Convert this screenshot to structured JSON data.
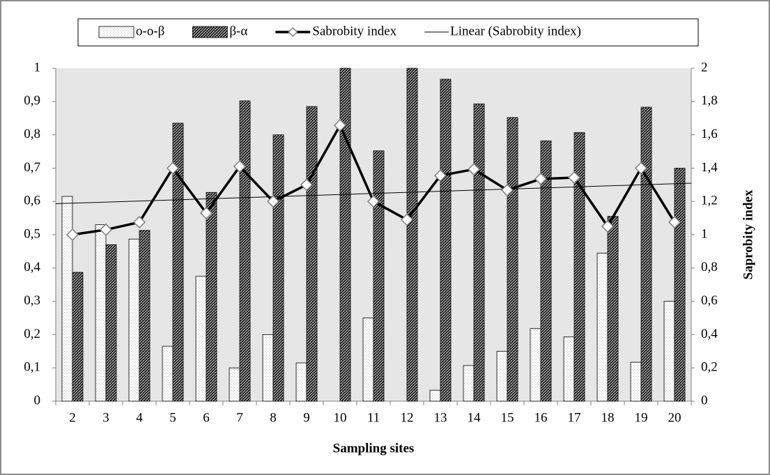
{
  "chart_data": {
    "type": "bar",
    "x_label": "Sampling sites",
    "y2_label": "Saprobity index",
    "categories": [
      "2",
      "3",
      "4",
      "5",
      "6",
      "7",
      "8",
      "9",
      "10",
      "11",
      "12",
      "13",
      "14",
      "15",
      "16",
      "17",
      "18",
      "19",
      "20"
    ],
    "ylim": [
      0,
      1
    ],
    "yticks": [
      0,
      {
        "value": 0.1,
        "label": "0,1"
      },
      {
        "value": 0.2,
        "label": "0,2"
      },
      {
        "value": 0.3,
        "label": "0,3"
      },
      {
        "value": 0.4,
        "label": "0,4"
      },
      {
        "value": 0.5,
        "label": "0,5"
      },
      {
        "value": 0.6,
        "label": "0,6"
      },
      {
        "value": 0.7,
        "label": "0,7"
      },
      {
        "value": 0.8,
        "label": "0,8"
      },
      {
        "value": 0.9,
        "label": "0,9"
      },
      1
    ],
    "y2lim": [
      0,
      2
    ],
    "y2ticks": [
      0,
      {
        "value": 0.2,
        "label": "0,2"
      },
      {
        "value": 0.4,
        "label": "0,4"
      },
      {
        "value": 0.6,
        "label": "0,6"
      },
      {
        "value": 0.8,
        "label": "0,8"
      },
      1,
      {
        "value": 1.2,
        "label": "1,2"
      },
      {
        "value": 1.4,
        "label": "1,4"
      },
      {
        "value": 1.6,
        "label": "1,6"
      },
      {
        "value": 1.8,
        "label": "1,8"
      },
      2
    ],
    "legend": "top",
    "series": [
      {
        "name": "o-o-β",
        "type": "bar",
        "color": "#bfbfbf",
        "values": [
          0.615,
          0.53,
          0.487,
          0.165,
          0.375,
          0.1,
          0.2,
          0.115,
          0,
          0.25,
          0,
          0.033,
          0.107,
          0.15,
          0.218,
          0.193,
          0.445,
          0.117,
          0.3
        ]
      },
      {
        "name": "β-α",
        "type": "bar",
        "color": "#1a1a1a",
        "values": [
          0.387,
          0.47,
          0.513,
          0.835,
          0.627,
          0.902,
          0.8,
          0.885,
          1.0,
          0.752,
          1.0,
          0.967,
          0.893,
          0.852,
          0.782,
          0.807,
          0.555,
          0.883,
          0.7
        ]
      },
      {
        "name": "Sabrobity index",
        "type": "line",
        "axis": "y2",
        "color": "#000000",
        "values": [
          1.0,
          1.03,
          1.075,
          1.4,
          1.13,
          1.41,
          1.2,
          1.3,
          1.657,
          1.2,
          1.09,
          1.355,
          1.393,
          1.268,
          1.335,
          1.343,
          1.05,
          1.4,
          1.075
        ],
        "trendline": {
          "name": "Linear (Sabrobity index)",
          "color": "#000000"
        }
      }
    ]
  }
}
